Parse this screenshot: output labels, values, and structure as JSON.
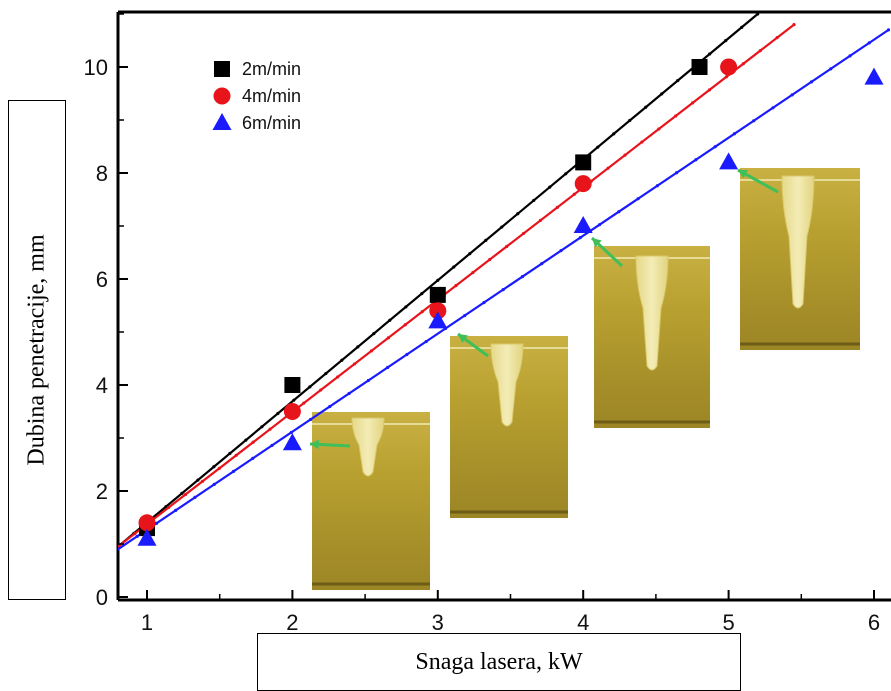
{
  "chart_data": {
    "type": "scatter",
    "xlabel": "Snaga lasera, kW",
    "ylabel": "Dubina penetracije, mm",
    "xlim": [
      0.8,
      6.1
    ],
    "ylim": [
      0,
      11
    ],
    "x_ticks": [
      "1",
      "2",
      "3",
      "4",
      "5",
      "6"
    ],
    "y_ticks": [
      "0",
      "2",
      "4",
      "6",
      "8",
      "10"
    ],
    "grid": false,
    "legend_position": "top-left",
    "series": [
      {
        "name": "2m/min",
        "marker": "square",
        "color": "#000000",
        "points": [
          [
            1,
            1.3
          ],
          [
            2,
            4.0
          ],
          [
            3,
            5.7
          ],
          [
            4,
            8.2
          ],
          [
            4.8,
            10.0
          ]
        ],
        "fit": [
          [
            0.8,
            0.95
          ],
          [
            5.2,
            11.0
          ]
        ]
      },
      {
        "name": "4m/min",
        "marker": "circle",
        "color": "#e8141b",
        "points": [
          [
            1,
            1.4
          ],
          [
            2,
            3.5
          ],
          [
            3,
            5.4
          ],
          [
            4,
            7.8
          ],
          [
            5,
            10.0
          ]
        ],
        "fit": [
          [
            0.8,
            0.95
          ],
          [
            5.45,
            10.8
          ]
        ]
      },
      {
        "name": "6m/min",
        "marker": "triangle",
        "color": "#1a1aff",
        "points": [
          [
            1,
            1.1
          ],
          [
            2,
            2.9
          ],
          [
            3,
            5.2
          ],
          [
            4,
            7.0
          ],
          [
            5,
            8.2
          ],
          [
            6,
            9.8
          ]
        ],
        "fit": [
          [
            0.8,
            0.9
          ],
          [
            6.1,
            10.7
          ]
        ]
      }
    ],
    "annotations": [
      {
        "label": "weld cross-section",
        "at_x": 2
      },
      {
        "label": "weld cross-section",
        "at_x": 3
      },
      {
        "label": "weld cross-section",
        "at_x": 4
      },
      {
        "label": "weld cross-section",
        "at_x": 5
      }
    ]
  }
}
